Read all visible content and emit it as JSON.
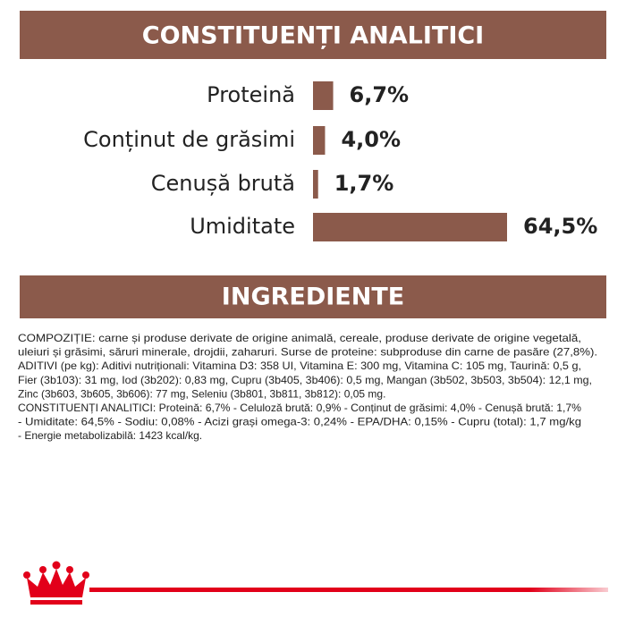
{
  "chart_data": {
    "type": "bar",
    "orientation": "horizontal",
    "title": "CONSTITUENȚI ANALITICI",
    "categories": [
      "Proteină",
      "Conținut de grăsimi",
      "Cenușă brută",
      "Umiditate"
    ],
    "values": [
      6.7,
      4.0,
      1.7,
      64.5
    ],
    "value_labels": [
      "6,7%",
      "4,0%",
      "1,7%",
      "64,5%"
    ],
    "color": "#8b5a4b"
  },
  "ingredients": {
    "title": "INGREDIENTE",
    "lines": [
      "COMPOZIȚIE: carne și produse derivate de origine animală, cereale, produse derivate de origine vegetală,",
      "uleiuri și grăsimi, săruri minerale, drojdii, zaharuri. Surse de proteine: subproduse din carne de pasăre (27,8%).",
      "ADITIVI (pe kg): Aditivi nutriționali: Vitamina D3: 358 UI, Vitamina E: 300 mg, Vitamina C: 105 mg, Taurină: 0,5 g,",
      "Fier (3b103): 31 mg, Iod (3b202): 0,83 mg, Cupru (3b405, 3b406): 0,5 mg, Mangan (3b502, 3b503, 3b504): 12,1 mg,",
      "Zinc (3b603, 3b605, 3b606): 77 mg, Seleniu (3b801, 3b811, 3b812): 0,05 mg.",
      "CONSTITUENȚI ANALITICI: Proteină: 6,7% - Celuloză brută: 0,9% - Conținut de grăsimi: 4,0% - Cenușă brută: 1,7%",
      "- Umiditate: 64,5% - Sodiu: 0,08% - Acizi grași omega-3: 0,24% - EPA/DHA: 0,15% - Cupru (total): 1,7 mg/kg",
      "- Energie metabolizabilă: 1423 kcal/kg."
    ]
  }
}
